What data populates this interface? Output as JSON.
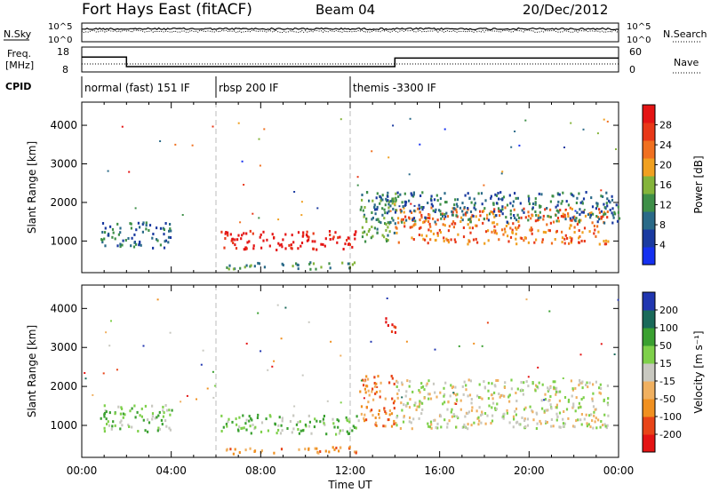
{
  "header": {
    "station": "Fort Hays East (fitACF)",
    "beam": "Beam 04",
    "date": "20/Dec/2012"
  },
  "top_panels": {
    "nsky_label": "N.Sky",
    "nsearch_label": "N.Search",
    "freq_label_line1": "Freq.",
    "freq_label_line2": "[MHz]",
    "nave_label": "Nave",
    "cpid_label": "CPID",
    "nsky_ticks": [
      "10^5",
      "10^0"
    ],
    "nsearch_ticks": [
      "10^5",
      "10^0"
    ],
    "freq_ticks": [
      "18",
      "8"
    ],
    "nave_ticks": [
      "60",
      "0"
    ],
    "cpid_segments": [
      {
        "label": "normal (fast) 151 IF",
        "start": 0,
        "end": 6
      },
      {
        "label": "rbsp 200 IF",
        "start": 6,
        "end": 12
      },
      {
        "label": "themis -3300 IF",
        "start": 12,
        "end": 24
      }
    ],
    "freq_steps": [
      {
        "start": 0,
        "end": 2.0,
        "value": 15.0
      },
      {
        "start": 2.0,
        "end": 14.0,
        "value": 10.5
      },
      {
        "start": 14.0,
        "end": 24,
        "value": 14.5
      }
    ]
  },
  "chart_data": [
    {
      "type": "heatmap",
      "name": "power-panel",
      "ylabel": "Slant Range [km]",
      "xlabel": "",
      "ylim": [
        180,
        4600
      ],
      "xlim": [
        0,
        24
      ],
      "y_ticks": [
        1000,
        2000,
        3000,
        4000
      ],
      "colorbar_label": "Power [dB]",
      "colorbar_ticks": [
        "4",
        "8",
        "12",
        "16",
        "20",
        "24",
        "28"
      ],
      "colorbar_colors": [
        "#1530f0",
        "#1a3aa0",
        "#2a6a88",
        "#3e8f48",
        "#84b43a",
        "#f0a020",
        "#f07020",
        "#e83818",
        "#e41414"
      ],
      "regions": [
        {
          "t0": 0.8,
          "t1": 4.0,
          "r0": 850,
          "r1": 1550,
          "level": 2
        },
        {
          "t0": 6.2,
          "t1": 12.4,
          "r0": 800,
          "r1": 1300,
          "level": 8
        },
        {
          "t0": 6.4,
          "t1": 12.4,
          "r0": 300,
          "r1": 480,
          "level": 3
        },
        {
          "t0": 12.4,
          "t1": 14.0,
          "r0": 1000,
          "r1": 2300,
          "level": 3
        },
        {
          "t0": 14.0,
          "t1": 23.5,
          "r0": 950,
          "r1": 1900,
          "level": 6
        },
        {
          "t0": 13.0,
          "t1": 24.0,
          "r0": 1500,
          "r1": 2300,
          "level": 2
        }
      ]
    },
    {
      "type": "heatmap",
      "name": "velocity-panel",
      "ylabel": "Slant Range [km]",
      "xlabel": "Time UT",
      "ylim": [
        180,
        4600
      ],
      "xlim": [
        0,
        24
      ],
      "y_ticks": [
        1000,
        2000,
        3000,
        4000
      ],
      "x_ticks": [
        "00:00",
        "04:00",
        "08:00",
        "12:00",
        "16:00",
        "20:00",
        "00:00"
      ],
      "colorbar_label": "Velocity [m s⁻¹]",
      "colorbar_ticks": [
        "200",
        "100",
        "50",
        "15",
        "-15",
        "-50",
        "-100",
        "-200"
      ],
      "colorbar_colors": [
        "#2036b0",
        "#1a6a5a",
        "#3aa030",
        "#7ed04a",
        "#c8c8c0",
        "#f0b060",
        "#f09020",
        "#e84418",
        "#e41414"
      ],
      "regions": [
        {
          "t0": 0.8,
          "t1": 4.0,
          "r0": 850,
          "r1": 1550,
          "level": 3
        },
        {
          "t0": 6.2,
          "t1": 12.4,
          "r0": 800,
          "r1": 1300,
          "level": 3
        },
        {
          "t0": 6.4,
          "t1": 12.4,
          "r0": 300,
          "r1": 480,
          "level": 6
        },
        {
          "t0": 12.4,
          "t1": 14.0,
          "r0": 1000,
          "r1": 2300,
          "level": 6
        },
        {
          "t0": 14.0,
          "t1": 23.5,
          "r0": 950,
          "r1": 2200,
          "level": 4
        },
        {
          "t0": 13.5,
          "t1": 14.0,
          "r0": 3300,
          "r1": 3800,
          "level": 8
        }
      ]
    }
  ]
}
